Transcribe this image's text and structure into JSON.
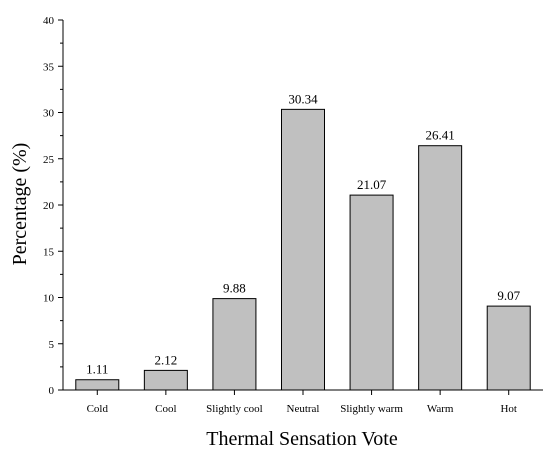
{
  "chart_data": {
    "type": "bar",
    "categories": [
      "Cold",
      "Cool",
      "Slightly cool",
      "Neutral",
      "Slightly warm",
      "Warm",
      "Hot"
    ],
    "values": [
      1.11,
      2.12,
      9.88,
      30.34,
      21.07,
      26.41,
      9.07
    ],
    "data_labels": [
      "1.11",
      "2.12",
      "9.88",
      "30.34",
      "21.07",
      "26.41",
      "9.07"
    ],
    "title": "",
    "xlabel": "Thermal Sensation Vote",
    "ylabel": "Percentage (%)",
    "ylim": [
      0,
      40
    ],
    "yticks": [
      "0",
      "5",
      "10",
      "15",
      "20",
      "25",
      "30",
      "35",
      "40"
    ],
    "grid": false,
    "legend": "none",
    "bar_color": "#c0c0c0",
    "edge_color": "#000000"
  }
}
